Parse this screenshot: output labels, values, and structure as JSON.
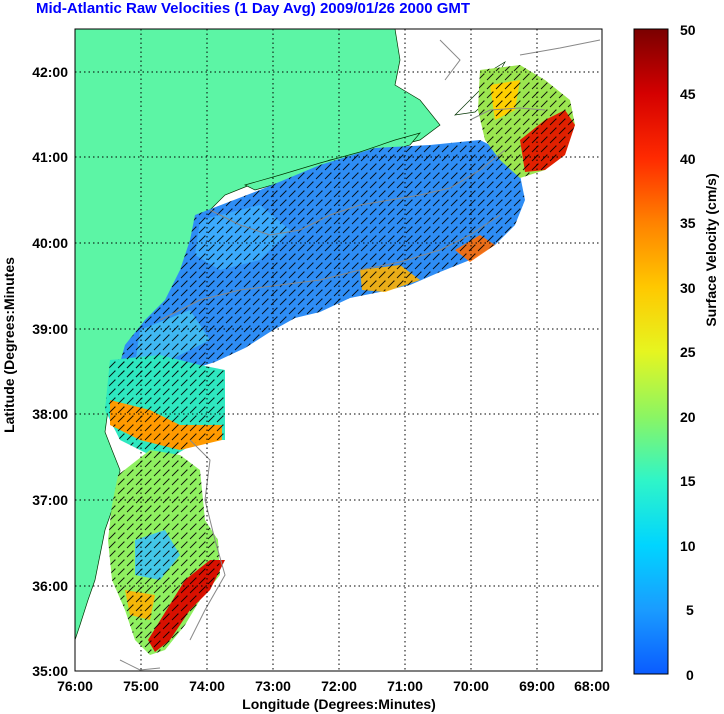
{
  "title": "Mid-Atlantic Raw Velocities (1 Day Avg) 2009/01/26 2000 GMT",
  "axes": {
    "xlabel": "Longitude (Degrees:Minutes)",
    "ylabel": "Latitude (Degrees:Minutes",
    "x_ticks": [
      "76:00",
      "75:00",
      "74:00",
      "73:00",
      "72:00",
      "71:00",
      "70:00",
      "69:00",
      "68:00"
    ],
    "y_ticks": [
      "42:00",
      "41:00",
      "40:00",
      "39:00",
      "38:00",
      "37:00",
      "36:00",
      "35:00"
    ]
  },
  "colorbar": {
    "label": "Surface Velocity (cm/s)",
    "ticks": [
      "50",
      "45",
      "40",
      "35",
      "30",
      "25",
      "20",
      "15",
      "10",
      "5",
      "0"
    ],
    "range": [
      0,
      50
    ]
  },
  "colors": {
    "land": "#5cf5a5",
    "title": "#0000ff",
    "low": "#1e6cff",
    "high": "#8b0000"
  }
}
